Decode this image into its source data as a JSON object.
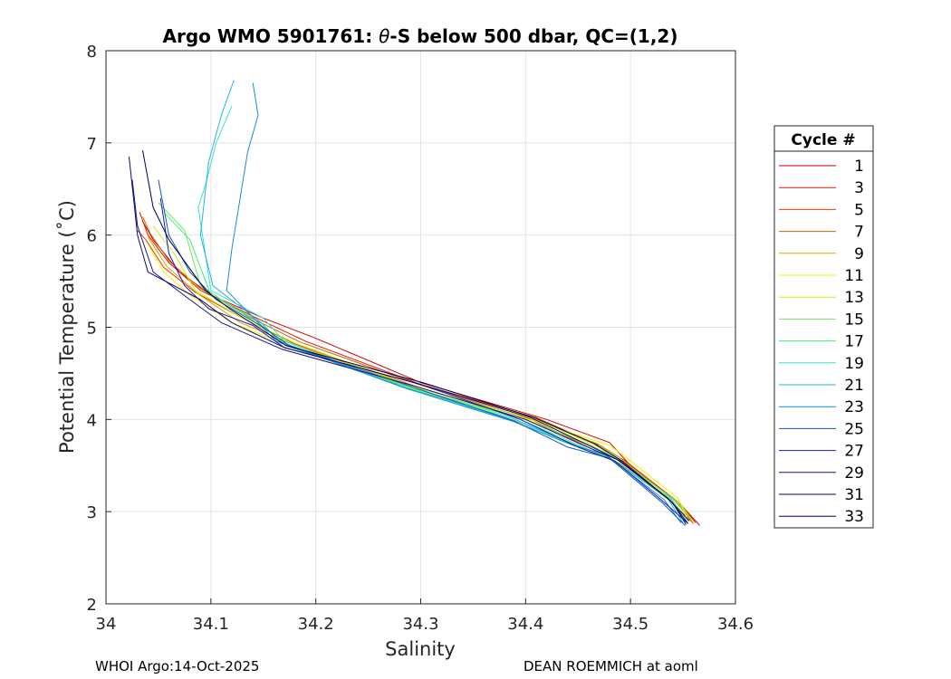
{
  "chart_data": {
    "type": "line",
    "title_prefix": "Argo WMO 5901761: ",
    "title_theta": "θ",
    "title_suffix": "-S below 500 dbar,  QC=(1,2)",
    "xlabel": "Salinity",
    "ylabel": "Potential Temperature (˚C)",
    "xlim": [
      34.0,
      34.6
    ],
    "ylim": [
      2,
      8
    ],
    "xticks": [
      "34",
      "34.1",
      "34.2",
      "34.3",
      "34.4",
      "34.5",
      "34.6"
    ],
    "yticks": [
      "2",
      "3",
      "4",
      "5",
      "6",
      "7",
      "8"
    ],
    "grid": true,
    "legend": {
      "title": "Cycle #",
      "placement": "outside-right",
      "entries": [
        "1",
        "3",
        "5",
        "7",
        "9",
        "11",
        "13",
        "15",
        "17",
        "19",
        "21",
        "23",
        "25",
        "27",
        "29",
        "31",
        "33"
      ],
      "colors": [
        "#cc0000",
        "#e01b00",
        "#e54000",
        "#c86a00",
        "#d9a800",
        "#f2f200",
        "#c8f000",
        "#6ee85a",
        "#3cf07a",
        "#33e6c8",
        "#26b4e6",
        "#1a8cd2",
        "#0f5ab4",
        "#1a1ab4",
        "#14148c",
        "#0a0a6e",
        "#000050"
      ]
    },
    "series": [
      {
        "name": "1",
        "s": [
          34.566,
          34.55,
          34.5,
          34.48,
          34.42,
          34.3,
          34.2,
          34.15,
          34.1,
          34.07,
          34.045,
          34.035
        ],
        "t": [
          2.85,
          3.05,
          3.5,
          3.75,
          4.0,
          4.4,
          4.88,
          5.1,
          5.35,
          5.6,
          5.95,
          6.15
        ]
      },
      {
        "name": "3",
        "s": [
          34.562,
          34.548,
          34.495,
          34.47,
          34.41,
          34.3,
          34.19,
          34.14,
          34.09,
          34.06,
          34.04,
          34.032
        ],
        "t": [
          2.88,
          3.08,
          3.55,
          3.72,
          4.02,
          4.38,
          4.85,
          5.12,
          5.4,
          5.7,
          6.0,
          6.25
        ]
      },
      {
        "name": "5",
        "s": [
          34.558,
          34.545,
          34.492,
          34.465,
          34.4,
          34.295,
          34.18,
          34.13,
          34.085,
          34.055,
          34.038,
          34.03
        ],
        "t": [
          2.9,
          3.1,
          3.55,
          3.7,
          4.0,
          4.36,
          4.82,
          5.1,
          5.38,
          5.65,
          5.95,
          6.05
        ]
      },
      {
        "name": "7",
        "s": [
          34.56,
          34.54,
          34.49,
          34.46,
          34.405,
          34.298,
          34.185,
          34.135,
          34.09,
          34.06,
          34.042,
          34.035
        ],
        "t": [
          2.87,
          3.1,
          3.52,
          3.7,
          4.0,
          4.38,
          4.84,
          5.12,
          5.42,
          5.72,
          6.02,
          6.2
        ]
      },
      {
        "name": "9",
        "s": [
          34.557,
          34.542,
          34.488,
          34.468,
          34.402,
          34.294,
          34.182,
          34.128,
          34.088,
          34.058,
          34.04
        ],
        "t": [
          2.92,
          3.12,
          3.6,
          3.74,
          4.02,
          4.35,
          4.8,
          5.05,
          5.36,
          5.66,
          5.98
        ]
      },
      {
        "name": "11",
        "s": [
          34.555,
          34.545,
          34.5,
          34.48,
          34.41,
          34.29,
          34.178,
          34.12,
          34.08,
          34.055,
          34.04
        ],
        "t": [
          2.9,
          3.15,
          3.55,
          3.72,
          3.98,
          4.32,
          4.78,
          5.05,
          5.35,
          5.6,
          5.9
        ]
      },
      {
        "name": "13",
        "s": [
          34.56,
          34.548,
          34.495,
          34.47,
          34.41,
          34.295,
          34.18,
          34.13,
          34.085,
          34.065,
          34.045
        ],
        "t": [
          2.88,
          3.08,
          3.5,
          3.7,
          4.0,
          4.35,
          4.83,
          5.1,
          5.4,
          5.8,
          6.1
        ]
      },
      {
        "name": "15",
        "s": [
          34.558,
          34.543,
          34.49,
          34.462,
          34.4,
          34.292,
          34.175,
          34.13,
          34.09,
          34.075,
          34.05
        ],
        "t": [
          2.92,
          3.12,
          3.56,
          3.72,
          4.0,
          4.34,
          4.8,
          5.15,
          5.45,
          6.05,
          6.35
        ]
      },
      {
        "name": "17",
        "s": [
          34.555,
          34.54,
          34.485,
          34.455,
          34.395,
          34.29,
          34.172,
          34.14,
          34.1,
          34.08,
          34.055
        ],
        "t": [
          2.9,
          3.12,
          3.55,
          3.7,
          4.0,
          4.34,
          4.8,
          5.1,
          5.35,
          5.95,
          6.25
        ]
      },
      {
        "name": "19",
        "s": [
          34.552,
          34.538,
          34.48,
          34.45,
          34.392,
          34.288,
          34.17,
          34.15,
          34.1,
          34.088,
          34.095,
          34.105,
          34.12
        ],
        "t": [
          2.9,
          3.15,
          3.57,
          3.7,
          3.98,
          4.33,
          4.85,
          5.1,
          5.4,
          6.3,
          6.55,
          7.0,
          7.4
        ]
      },
      {
        "name": "21",
        "s": [
          34.55,
          34.535,
          34.478,
          34.448,
          34.39,
          34.287,
          34.165,
          34.148,
          34.102,
          34.09,
          34.098,
          34.11,
          34.122
        ],
        "t": [
          2.88,
          3.15,
          3.6,
          3.72,
          4.0,
          4.34,
          4.85,
          5.05,
          5.45,
          6.0,
          6.8,
          7.3,
          7.68
        ]
      },
      {
        "name": "23",
        "s": [
          34.548,
          34.532,
          34.476,
          34.445,
          34.388,
          34.285,
          34.162,
          34.145,
          34.115,
          34.12,
          34.135,
          34.145,
          34.14
        ],
        "t": [
          2.88,
          3.13,
          3.62,
          3.72,
          3.98,
          4.34,
          4.85,
          5.05,
          5.4,
          5.85,
          6.9,
          7.3,
          7.65
        ]
      },
      {
        "name": "25",
        "s": [
          34.552,
          34.53,
          34.48,
          34.44,
          34.39,
          34.29,
          34.175,
          34.15,
          34.105,
          34.08,
          34.06,
          34.05
        ],
        "t": [
          2.85,
          3.1,
          3.58,
          3.7,
          3.98,
          4.36,
          4.8,
          5.0,
          5.3,
          5.6,
          6.0,
          6.6
        ]
      },
      {
        "name": "27",
        "s": [
          34.554,
          34.53,
          34.485,
          34.45,
          34.395,
          34.3,
          34.17,
          34.14,
          34.098,
          34.075,
          34.06,
          34.052
        ],
        "t": [
          2.88,
          3.12,
          3.55,
          3.7,
          4.0,
          4.38,
          4.78,
          5.02,
          5.2,
          5.45,
          5.8,
          6.4
        ]
      },
      {
        "name": "29",
        "s": [
          34.556,
          34.535,
          34.488,
          34.455,
          34.4,
          34.295,
          34.168,
          34.11,
          34.08,
          34.045,
          34.03,
          34.025
        ],
        "t": [
          2.9,
          3.15,
          3.56,
          3.72,
          4.0,
          4.36,
          4.76,
          5.05,
          5.3,
          5.6,
          6.1,
          6.6
        ]
      },
      {
        "name": "31",
        "s": [
          34.555,
          34.538,
          34.49,
          34.46,
          34.405,
          34.3,
          34.17,
          34.12,
          34.09,
          34.04,
          34.03,
          34.022
        ],
        "t": [
          2.87,
          3.12,
          3.55,
          3.72,
          4.02,
          4.38,
          4.78,
          5.05,
          5.3,
          5.6,
          6.0,
          6.85
        ]
      },
      {
        "name": "33",
        "s": [
          34.553,
          34.54,
          34.492,
          34.465,
          34.408,
          34.302,
          34.172,
          34.118,
          34.095,
          34.06,
          34.045,
          34.035
        ],
        "t": [
          2.86,
          3.1,
          3.55,
          3.74,
          4.02,
          4.4,
          4.8,
          5.2,
          5.4,
          5.95,
          6.3,
          6.92
        ]
      }
    ]
  },
  "footer": {
    "left": "WHOI Argo:14-Oct-2025",
    "right": "DEAN ROEMMICH at aoml"
  }
}
